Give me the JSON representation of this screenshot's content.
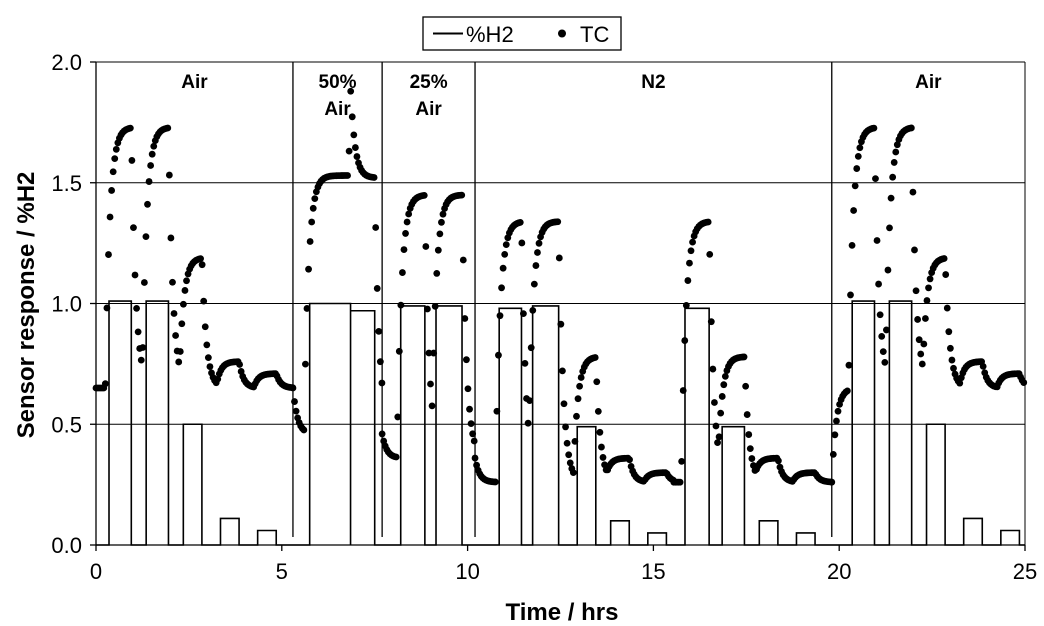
{
  "chart_data": {
    "type": "line",
    "xlabel": "Time / hrs",
    "ylabel": "Sensor response / %H2",
    "xlim": [
      0,
      25
    ],
    "ylim": [
      0,
      2
    ],
    "xticks": [
      "0",
      "5",
      "10",
      "15",
      "20",
      "25"
    ],
    "yticks": [
      "0.0",
      "0.5",
      "1.0",
      "1.5",
      "2.0"
    ],
    "grid": "horizontal",
    "legend": {
      "placement": "top-center",
      "entries": [
        {
          "label": "%H2",
          "marker": "line"
        },
        {
          "label": "TC",
          "marker": "dot"
        }
      ]
    },
    "regions": [
      {
        "label": [
          "Air"
        ],
        "start": 0,
        "end": 5.3
      },
      {
        "label": [
          "50%",
          "Air"
        ],
        "start": 5.3,
        "end": 7.7
      },
      {
        "label": [
          "25%",
          "Air"
        ],
        "start": 7.7,
        "end": 10.2
      },
      {
        "label": [
          "N2"
        ],
        "start": 10.2,
        "end": 19.8
      },
      {
        "label": [
          "Air"
        ],
        "start": 19.8,
        "end": 25
      }
    ],
    "series": [
      {
        "name": "%H2",
        "style": "step-line",
        "pulses": [
          {
            "start": 0.35,
            "end": 0.95,
            "value": 1.01
          },
          {
            "start": 1.35,
            "end": 1.95,
            "value": 1.01
          },
          {
            "start": 2.35,
            "end": 2.85,
            "value": 0.5
          },
          {
            "start": 3.35,
            "end": 3.85,
            "value": 0.11
          },
          {
            "start": 4.35,
            "end": 4.85,
            "value": 0.06
          },
          {
            "start": 5.75,
            "end": 6.85,
            "value": 1.0
          },
          {
            "start": 6.85,
            "end": 7.5,
            "value": 0.97
          },
          {
            "start": 8.2,
            "end": 8.85,
            "value": 0.99
          },
          {
            "start": 9.15,
            "end": 9.85,
            "value": 0.99
          },
          {
            "start": 10.85,
            "end": 11.45,
            "value": 0.98
          },
          {
            "start": 11.75,
            "end": 12.45,
            "value": 0.99
          },
          {
            "start": 12.95,
            "end": 13.45,
            "value": 0.49
          },
          {
            "start": 13.85,
            "end": 14.35,
            "value": 0.1
          },
          {
            "start": 14.85,
            "end": 15.35,
            "value": 0.05
          },
          {
            "start": 15.85,
            "end": 16.5,
            "value": 0.98
          },
          {
            "start": 16.85,
            "end": 17.45,
            "value": 0.49
          },
          {
            "start": 17.85,
            "end": 18.35,
            "value": 0.1
          },
          {
            "start": 18.85,
            "end": 19.35,
            "value": 0.05
          },
          {
            "start": 20.35,
            "end": 20.95,
            "value": 1.01
          },
          {
            "start": 21.35,
            "end": 21.95,
            "value": 1.01
          },
          {
            "start": 22.35,
            "end": 22.85,
            "value": 0.5
          },
          {
            "start": 23.35,
            "end": 23.85,
            "value": 0.11
          },
          {
            "start": 24.35,
            "end": 24.85,
            "value": 0.06
          }
        ]
      },
      {
        "name": "TC",
        "style": "dots",
        "segments": [
          {
            "start": 0,
            "end": 5.3,
            "baseline": 0.65,
            "pulses": [
              [
                0.25,
                0.95,
                1.73
              ],
              [
                1.25,
                1.95,
                1.73
              ],
              [
                2.25,
                2.85,
                1.19
              ],
              [
                3.25,
                3.85,
                0.76
              ],
              [
                4.25,
                4.85,
                0.71
              ]
            ]
          },
          {
            "start": 5.3,
            "end": 7.7,
            "baseline": 0.46,
            "pulses": [
              [
                5.6,
                6.85,
                1.53
              ],
              [
                6.8,
                7.5,
                1.52
              ]
            ]
          },
          {
            "start": 7.7,
            "end": 10.2,
            "baseline": 0.36,
            "pulses": [
              [
                8.1,
                8.85,
                1.45
              ],
              [
                9.05,
                9.85,
                1.45
              ]
            ]
          },
          {
            "start": 10.2,
            "end": 15.55,
            "baseline": 0.26,
            "pulses": [
              [
                10.75,
                11.45,
                1.34
              ],
              [
                11.65,
                12.45,
                1.34
              ],
              [
                12.85,
                13.45,
                0.78
              ],
              [
                13.75,
                14.35,
                0.36
              ],
              [
                14.75,
                15.35,
                0.3
              ]
            ]
          },
          {
            "start": 15.55,
            "end": 19.8,
            "baseline": 0.26,
            "pulses": [
              [
                15.75,
                16.5,
                1.34
              ],
              [
                16.75,
                17.45,
                0.78
              ],
              [
                17.75,
                18.35,
                0.36
              ],
              [
                18.75,
                19.35,
                0.3
              ]
            ]
          },
          {
            "start": 19.8,
            "end": 25,
            "baseline": 0.65,
            "pulses": [
              [
                20.25,
                20.95,
                1.73
              ],
              [
                21.25,
                21.95,
                1.73
              ],
              [
                22.25,
                22.85,
                1.19
              ],
              [
                23.25,
                23.85,
                0.76
              ],
              [
                24.25,
                24.85,
                0.71
              ]
            ]
          }
        ]
      }
    ]
  }
}
